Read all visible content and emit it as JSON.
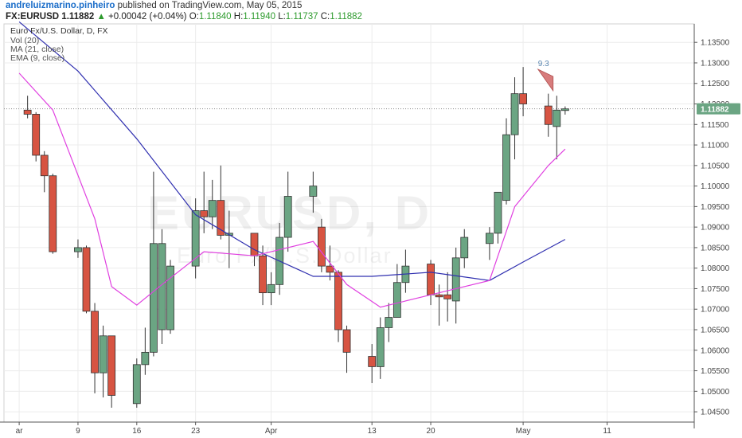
{
  "header": {
    "author": "andreluizmarino.pinheiro",
    "published_text": "published on TradingView.com, May 05, 2015",
    "symbol": "FX:EURUSD",
    "last_price": "1.11882",
    "change": "+0.00042 (+0.04%)",
    "open_label": "O:",
    "open_value": "1.11840",
    "high_label": "H:",
    "high_value": "1.11940",
    "low_label": "L:",
    "low_value": "1.11737",
    "close_label": "C:",
    "close_value": "1.11882"
  },
  "legend": {
    "title": "Euro Fx/U.S. Dollar, D, FX",
    "vol": "Vol (20)",
    "ma": "MA (21, close)",
    "ema": "EMA (9, close)"
  },
  "watermark": {
    "line1": "EURUSD, D",
    "line2": "Euro Fx/U.S. Dollar"
  },
  "price_label": "1.11882",
  "annotation_label": "9.3",
  "colors": {
    "up": "#6ba583",
    "down": "#d75442",
    "ma": "#3030b0",
    "ema": "#e040e0",
    "price_tag": "#6ba583",
    "annotation": "#d77c7c"
  },
  "chart_data": {
    "type": "candlestick",
    "title": "Euro Fx/U.S. Dollar, D, FX",
    "ylim": [
      1.0425,
      1.1395
    ],
    "y_ticks": [
      "1.13500",
      "1.13000",
      "1.12500",
      "1.12000",
      "1.11500",
      "1.11000",
      "1.10500",
      "1.10000",
      "1.09500",
      "1.09000",
      "1.08500",
      "1.08000",
      "1.07500",
      "1.07000",
      "1.06500",
      "1.06000",
      "1.05500",
      "1.05000",
      "1.04500"
    ],
    "x_ticks": [
      {
        "label": "ar",
        "date": "2015-03-02"
      },
      {
        "label": "9",
        "date": "2015-03-09"
      },
      {
        "label": "16",
        "date": "2015-03-16"
      },
      {
        "label": "23",
        "date": "2015-03-23"
      },
      {
        "label": "Apr",
        "date": "2015-04-01"
      },
      {
        "label": "13",
        "date": "2015-04-13"
      },
      {
        "label": "20",
        "date": "2015-04-20"
      },
      {
        "label": "May",
        "date": "2015-05-01"
      },
      {
        "label": "11",
        "date": "2015-05-11"
      }
    ],
    "candles": [
      {
        "date": "2015-03-03",
        "o": 1.1185,
        "h": 1.122,
        "l": 1.1165,
        "c": 1.1175
      },
      {
        "date": "2015-03-04",
        "o": 1.1175,
        "h": 1.118,
        "l": 1.106,
        "c": 1.1075
      },
      {
        "date": "2015-03-05",
        "o": 1.1075,
        "h": 1.1085,
        "l": 1.0985,
        "c": 1.1025
      },
      {
        "date": "2015-03-06",
        "o": 1.1025,
        "h": 1.103,
        "l": 1.0835,
        "c": 1.084
      },
      {
        "date": "2015-03-09",
        "o": 1.084,
        "h": 1.087,
        "l": 1.0825,
        "c": 1.085
      },
      {
        "date": "2015-03-10",
        "o": 1.085,
        "h": 1.0855,
        "l": 1.069,
        "c": 1.0695
      },
      {
        "date": "2015-03-11",
        "o": 1.0695,
        "h": 1.0715,
        "l": 1.0495,
        "c": 1.0545
      },
      {
        "date": "2015-03-12",
        "o": 1.0545,
        "h": 1.066,
        "l": 1.0485,
        "c": 1.0635
      },
      {
        "date": "2015-03-13",
        "o": 1.0635,
        "h": 1.0635,
        "l": 1.046,
        "c": 1.049
      },
      {
        "date": "2015-03-16",
        "o": 1.047,
        "h": 1.058,
        "l": 1.046,
        "c": 1.0565
      },
      {
        "date": "2015-03-17",
        "o": 1.0565,
        "h": 1.0655,
        "l": 1.054,
        "c": 1.0595
      },
      {
        "date": "2015-03-18",
        "o": 1.0595,
        "h": 1.1035,
        "l": 1.0585,
        "c": 1.086
      },
      {
        "date": "2015-03-19",
        "o": 1.065,
        "h": 1.0895,
        "l": 1.0615,
        "c": 1.086
      },
      {
        "date": "2015-03-20",
        "o": 1.065,
        "h": 1.082,
        "l": 1.064,
        "c": 1.0805
      },
      {
        "date": "2015-03-23",
        "o": 1.0805,
        "h": 1.097,
        "l": 1.0775,
        "c": 1.094
      },
      {
        "date": "2015-03-24",
        "o": 1.094,
        "h": 1.1035,
        "l": 1.0885,
        "c": 1.0925
      },
      {
        "date": "2015-03-25",
        "o": 1.0925,
        "h": 1.1015,
        "l": 1.0895,
        "c": 1.0965
      },
      {
        "date": "2015-03-26",
        "o": 1.0965,
        "h": 1.105,
        "l": 1.087,
        "c": 1.088
      },
      {
        "date": "2015-03-27",
        "o": 1.088,
        "h": 1.094,
        "l": 1.08,
        "c": 1.0885
      },
      {
        "date": "2015-03-30",
        "o": 1.0885,
        "h": 1.0885,
        "l": 1.0805,
        "c": 1.083
      },
      {
        "date": "2015-03-31",
        "o": 1.083,
        "h": 1.0855,
        "l": 1.071,
        "c": 1.074
      },
      {
        "date": "2015-04-01",
        "o": 1.074,
        "h": 1.079,
        "l": 1.071,
        "c": 1.076
      },
      {
        "date": "2015-04-02",
        "o": 1.076,
        "h": 1.091,
        "l": 1.0735,
        "c": 1.0875
      },
      {
        "date": "2015-04-03",
        "o": 1.0875,
        "h": 1.1035,
        "l": 1.084,
        "c": 1.0975
      },
      {
        "date": "2015-04-06",
        "o": 1.0975,
        "h": 1.1035,
        "l": 1.0935,
        "c": 1.1
      },
      {
        "date": "2015-04-07",
        "o": 1.09,
        "h": 1.092,
        "l": 1.079,
        "c": 1.0805
      },
      {
        "date": "2015-04-08",
        "o": 1.0805,
        "h": 1.0855,
        "l": 1.077,
        "c": 1.079
      },
      {
        "date": "2015-04-09",
        "o": 1.079,
        "h": 1.0795,
        "l": 1.062,
        "c": 1.065
      },
      {
        "date": "2015-04-10",
        "o": 1.065,
        "h": 1.066,
        "l": 1.0545,
        "c": 1.0595
      },
      {
        "date": "2015-04-13",
        "o": 1.0585,
        "h": 1.0615,
        "l": 1.052,
        "c": 1.056
      },
      {
        "date": "2015-04-14",
        "o": 1.056,
        "h": 1.068,
        "l": 1.053,
        "c": 1.0655
      },
      {
        "date": "2015-04-15",
        "o": 1.0655,
        "h": 1.0715,
        "l": 1.062,
        "c": 1.068
      },
      {
        "date": "2015-04-16",
        "o": 1.068,
        "h": 1.081,
        "l": 1.068,
        "c": 1.0765
      },
      {
        "date": "2015-04-17",
        "o": 1.0765,
        "h": 1.0845,
        "l": 1.074,
        "c": 1.0805
      },
      {
        "date": "2015-04-20",
        "o": 1.081,
        "h": 1.082,
        "l": 1.071,
        "c": 1.0735
      },
      {
        "date": "2015-04-21",
        "o": 1.0735,
        "h": 1.076,
        "l": 1.066,
        "c": 1.073
      },
      {
        "date": "2015-04-22",
        "o": 1.0735,
        "h": 1.079,
        "l": 1.067,
        "c": 1.0725
      },
      {
        "date": "2015-04-23",
        "o": 1.072,
        "h": 1.085,
        "l": 1.0665,
        "c": 1.0825
      },
      {
        "date": "2015-04-24",
        "o": 1.0825,
        "h": 1.0895,
        "l": 1.08,
        "c": 1.0875
      },
      {
        "date": "2015-04-27",
        "o": 1.086,
        "h": 1.09,
        "l": 1.082,
        "c": 1.0885
      },
      {
        "date": "2015-04-28",
        "o": 1.0885,
        "h": 1.0985,
        "l": 1.086,
        "c": 1.0985
      },
      {
        "date": "2015-04-29",
        "o": 1.0965,
        "h": 1.1165,
        "l": 1.0955,
        "c": 1.1125
      },
      {
        "date": "2015-04-30",
        "o": 1.1125,
        "h": 1.1265,
        "l": 1.1065,
        "c": 1.1225
      },
      {
        "date": "2015-05-01",
        "o": 1.1225,
        "h": 1.129,
        "l": 1.117,
        "c": 1.12
      },
      {
        "date": "2015-05-04",
        "o": 1.1195,
        "h": 1.1225,
        "l": 1.112,
        "c": 1.115
      },
      {
        "date": "2015-05-05",
        "o": 1.1145,
        "h": 1.122,
        "l": 1.1065,
        "c": 1.1185
      },
      {
        "date": "2015-05-06",
        "o": 1.1184,
        "h": 1.1194,
        "l": 1.1174,
        "c": 1.1188
      }
    ],
    "ma": [
      {
        "date": "2015-03-02",
        "v": 1.14
      },
      {
        "date": "2015-03-09",
        "v": 1.128
      },
      {
        "date": "2015-03-16",
        "v": 1.1115
      },
      {
        "date": "2015-03-23",
        "v": 1.093
      },
      {
        "date": "2015-03-30",
        "v": 1.0845
      },
      {
        "date": "2015-04-06",
        "v": 1.078
      },
      {
        "date": "2015-04-13",
        "v": 1.078
      },
      {
        "date": "2015-04-20",
        "v": 1.079
      },
      {
        "date": "2015-04-27",
        "v": 1.077
      },
      {
        "date": "2015-05-01",
        "v": 1.0815
      },
      {
        "date": "2015-05-06",
        "v": 1.087
      }
    ],
    "ema": [
      {
        "date": "2015-03-02",
        "v": 1.1275
      },
      {
        "date": "2015-03-06",
        "v": 1.1185
      },
      {
        "date": "2015-03-11",
        "v": 1.092
      },
      {
        "date": "2015-03-13",
        "v": 1.0755
      },
      {
        "date": "2015-03-16",
        "v": 1.071
      },
      {
        "date": "2015-03-19",
        "v": 1.076
      },
      {
        "date": "2015-03-24",
        "v": 1.084
      },
      {
        "date": "2015-03-30",
        "v": 1.083
      },
      {
        "date": "2015-04-06",
        "v": 1.0865
      },
      {
        "date": "2015-04-10",
        "v": 1.076
      },
      {
        "date": "2015-04-14",
        "v": 1.0705
      },
      {
        "date": "2015-04-20",
        "v": 1.0735
      },
      {
        "date": "2015-04-27",
        "v": 1.077
      },
      {
        "date": "2015-04-30",
        "v": 1.095
      },
      {
        "date": "2015-05-04",
        "v": 1.105
      },
      {
        "date": "2015-05-06",
        "v": 1.109
      }
    ],
    "last_price": 1.11882,
    "annotation": {
      "label": "9.3",
      "date": "2015-05-04",
      "price": 1.1265,
      "shape": "flag-down"
    }
  }
}
